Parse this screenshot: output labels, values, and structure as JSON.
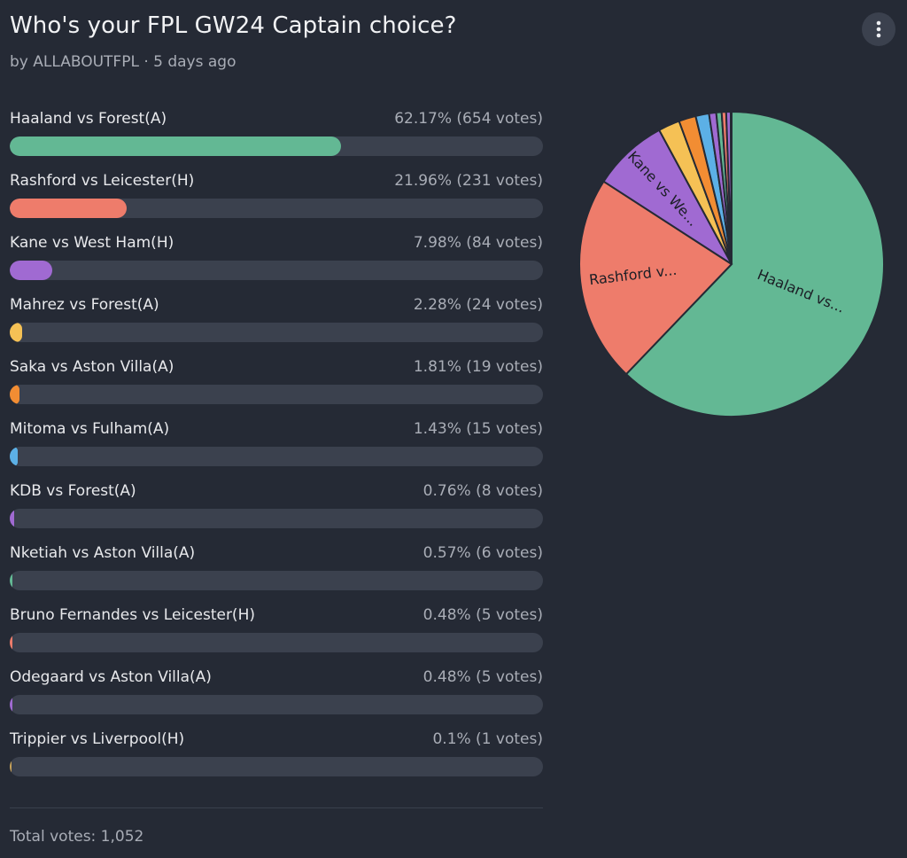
{
  "poll": {
    "title": "Who's your FPL GW24 Captain choice?",
    "subtitle": "by ALLABOUTFPL · 5 days ago",
    "total": "Total votes: 1,052",
    "menu_icon": "more-vertical-icon",
    "options": [
      {
        "label": "Haaland vs Forest(A)",
        "value_text": "62.17% (654 votes)",
        "pct": 62.17,
        "votes": 654,
        "color": "#63b894",
        "pie_label": "Haaland vs..."
      },
      {
        "label": "Rashford vs Leicester(H)",
        "value_text": "21.96% (231 votes)",
        "pct": 21.96,
        "votes": 231,
        "color": "#ee7c6b",
        "pie_label": "Rashford v..."
      },
      {
        "label": "Kane vs West Ham(H)",
        "value_text": "7.98% (84 votes)",
        "pct": 7.98,
        "votes": 84,
        "color": "#a06ad2",
        "pie_label": "Kane vs We..."
      },
      {
        "label": "Mahrez vs Forest(A)",
        "value_text": "2.28% (24 votes)",
        "pct": 2.28,
        "votes": 24,
        "color": "#f5c155",
        "pie_label": ""
      },
      {
        "label": "Saka vs Aston Villa(A)",
        "value_text": "1.81% (19 votes)",
        "pct": 1.81,
        "votes": 19,
        "color": "#f28d33",
        "pie_label": ""
      },
      {
        "label": "Mitoma vs Fulham(A)",
        "value_text": "1.43% (15 votes)",
        "pct": 1.43,
        "votes": 15,
        "color": "#5cb0e6",
        "pie_label": ""
      },
      {
        "label": "KDB vs Forest(A)",
        "value_text": "0.76% (8 votes)",
        "pct": 0.76,
        "votes": 8,
        "color": "#a06ad2",
        "pie_label": ""
      },
      {
        "label": "Nketiah vs Aston Villa(A)",
        "value_text": "0.57% (6 votes)",
        "pct": 0.57,
        "votes": 6,
        "color": "#63b894",
        "pie_label": ""
      },
      {
        "label": "Bruno Fernandes vs Leicester(H)",
        "value_text": "0.48% (5 votes)",
        "pct": 0.48,
        "votes": 5,
        "color": "#ee7c6b",
        "pie_label": ""
      },
      {
        "label": "Odegaard vs Aston Villa(A)",
        "value_text": "0.48% (5 votes)",
        "pct": 0.48,
        "votes": 5,
        "color": "#a06ad2",
        "pie_label": ""
      },
      {
        "label": "Trippier vs Liverpool(H)",
        "value_text": "0.1% (1 votes)",
        "pct": 0.1,
        "votes": 1,
        "color": "#c9a35a",
        "pie_label": ""
      }
    ]
  },
  "chart_data": {
    "type": "pie",
    "title": "Who's your FPL GW24 Captain choice?",
    "categories": [
      "Haaland vs Forest(A)",
      "Rashford vs Leicester(H)",
      "Kane vs West Ham(H)",
      "Mahrez vs Forest(A)",
      "Saka vs Aston Villa(A)",
      "Mitoma vs Fulham(A)",
      "KDB vs Forest(A)",
      "Nketiah vs Aston Villa(A)",
      "Bruno Fernandes vs Leicester(H)",
      "Odegaard vs Aston Villa(A)",
      "Trippier vs Liverpool(H)"
    ],
    "values": [
      654,
      231,
      84,
      24,
      19,
      15,
      8,
      6,
      5,
      5,
      1
    ],
    "percentages": [
      62.17,
      21.96,
      7.98,
      2.28,
      1.81,
      1.43,
      0.76,
      0.57,
      0.48,
      0.48,
      0.1
    ],
    "xlabel": "",
    "ylabel": ""
  }
}
